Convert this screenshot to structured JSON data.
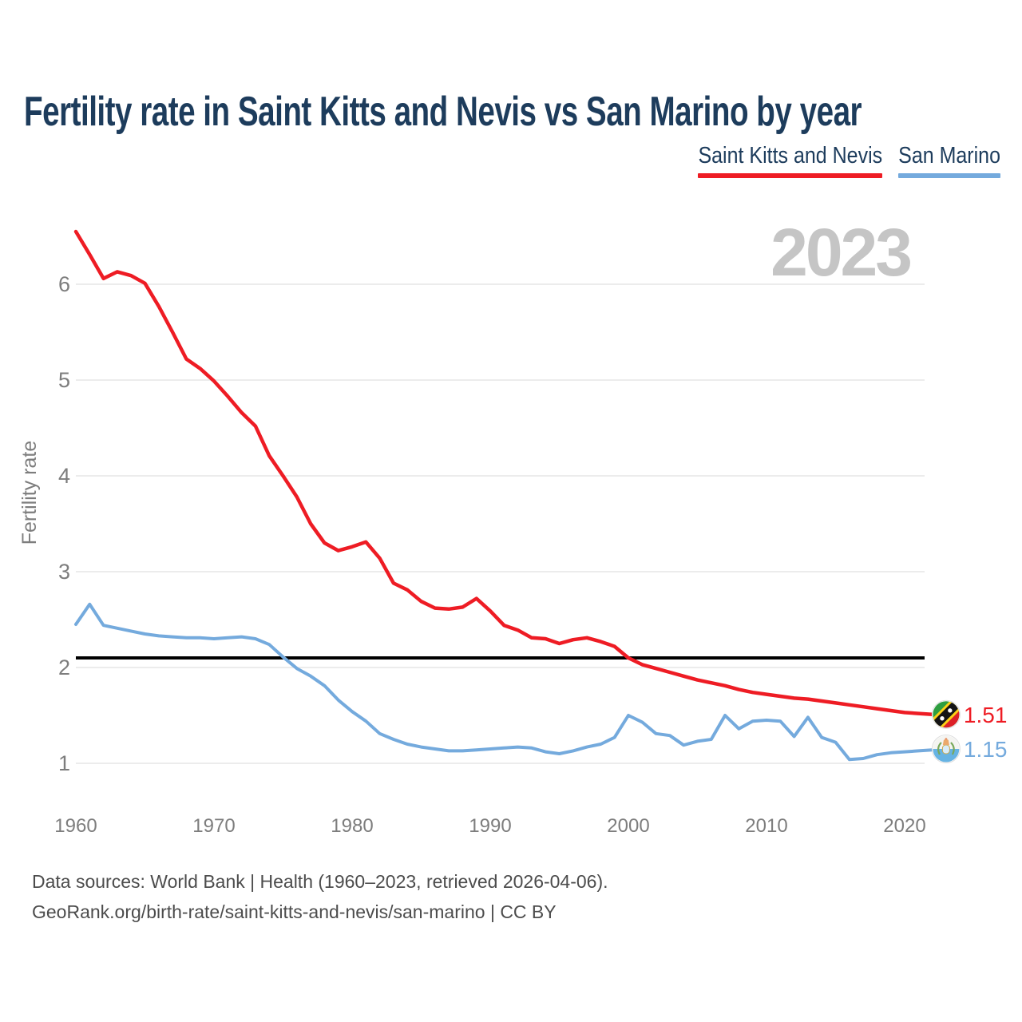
{
  "header": {
    "title": "Fertility rate in Saint Kitts and Nevis vs San Marino by year"
  },
  "legend": {
    "items": [
      {
        "label": "Saint Kitts and Nevis",
        "color": "#ee1c24"
      },
      {
        "label": "San Marino",
        "color": "#74aadd"
      }
    ]
  },
  "watermark": {
    "text": "2023"
  },
  "y_axis": {
    "label": "Fertility rate",
    "ticks": [
      1,
      2,
      3,
      4,
      5,
      6
    ]
  },
  "x_axis": {
    "ticks": [
      1960,
      1970,
      1980,
      1990,
      2000,
      2010,
      2020
    ]
  },
  "reference_line": {
    "value": 2.1,
    "color": "#000000"
  },
  "colors": {
    "navy": "#1d3c5c",
    "red": "#ee1c24",
    "blue": "#74aadd",
    "tick": "#7d7d7d",
    "grid": "#ececec",
    "watermark": "#c5c5c5",
    "footer": "#4c4c4c",
    "refline": "#000000"
  },
  "footer": {
    "line1": "Data sources: World Bank | Health (1960–2023, retrieved 2026-04-06).",
    "line2": "GeoRank.org/birth-rate/saint-kitts-and-nevis/san-marino | CC BY"
  },
  "chart_data": {
    "type": "line",
    "title": "Fertility rate in Saint Kitts and Nevis vs San Marino by year",
    "xlabel": "",
    "ylabel": "Fertility rate",
    "xlim": [
      1960,
      2023
    ],
    "ylim": [
      0.85,
      6.6
    ],
    "grid": "horizontal",
    "legend_position": "top-right",
    "x": [
      1960,
      1961,
      1962,
      1963,
      1964,
      1965,
      1966,
      1967,
      1968,
      1969,
      1970,
      1971,
      1972,
      1973,
      1974,
      1975,
      1976,
      1977,
      1978,
      1979,
      1980,
      1981,
      1982,
      1983,
      1984,
      1985,
      1986,
      1987,
      1988,
      1989,
      1990,
      1991,
      1992,
      1993,
      1994,
      1995,
      1996,
      1997,
      1998,
      1999,
      2000,
      2001,
      2002,
      2003,
      2004,
      2005,
      2006,
      2007,
      2008,
      2009,
      2010,
      2011,
      2012,
      2013,
      2014,
      2015,
      2016,
      2017,
      2018,
      2019,
      2020,
      2021,
      2022,
      2023
    ],
    "series": [
      {
        "name": "Saint Kitts and Nevis",
        "color": "#ee1c24",
        "end_label": "1.51",
        "values": [
          6.55,
          6.31,
          6.06,
          6.13,
          6.09,
          6.01,
          5.77,
          5.5,
          5.22,
          5.12,
          4.99,
          4.83,
          4.66,
          4.52,
          4.21,
          4.0,
          3.78,
          3.5,
          3.3,
          3.22,
          3.26,
          3.31,
          3.14,
          2.88,
          2.81,
          2.69,
          2.62,
          2.61,
          2.63,
          2.72,
          2.59,
          2.44,
          2.39,
          2.31,
          2.3,
          2.25,
          2.29,
          2.31,
          2.27,
          2.22,
          2.1,
          2.03,
          1.99,
          1.95,
          1.91,
          1.87,
          1.84,
          1.81,
          1.77,
          1.74,
          1.72,
          1.7,
          1.68,
          1.67,
          1.65,
          1.63,
          1.61,
          1.59,
          1.57,
          1.55,
          1.53,
          1.52,
          1.51,
          1.51
        ]
      },
      {
        "name": "San Marino",
        "color": "#74aadd",
        "end_label": "1.15",
        "values": [
          2.45,
          2.66,
          2.44,
          2.41,
          2.38,
          2.35,
          2.33,
          2.32,
          2.31,
          2.31,
          2.3,
          2.31,
          2.32,
          2.3,
          2.24,
          2.11,
          1.99,
          1.91,
          1.81,
          1.66,
          1.54,
          1.44,
          1.31,
          1.25,
          1.2,
          1.17,
          1.15,
          1.13,
          1.13,
          1.14,
          1.15,
          1.16,
          1.17,
          1.16,
          1.12,
          1.1,
          1.13,
          1.17,
          1.2,
          1.27,
          1.5,
          1.43,
          1.31,
          1.29,
          1.19,
          1.23,
          1.25,
          1.5,
          1.36,
          1.44,
          1.45,
          1.44,
          1.28,
          1.48,
          1.27,
          1.22,
          1.04,
          1.05,
          1.09,
          1.11,
          1.12,
          1.13,
          1.14,
          1.15
        ]
      }
    ],
    "annotations": {
      "horizontal_reference_line": 2.1,
      "watermark": "2023"
    }
  }
}
